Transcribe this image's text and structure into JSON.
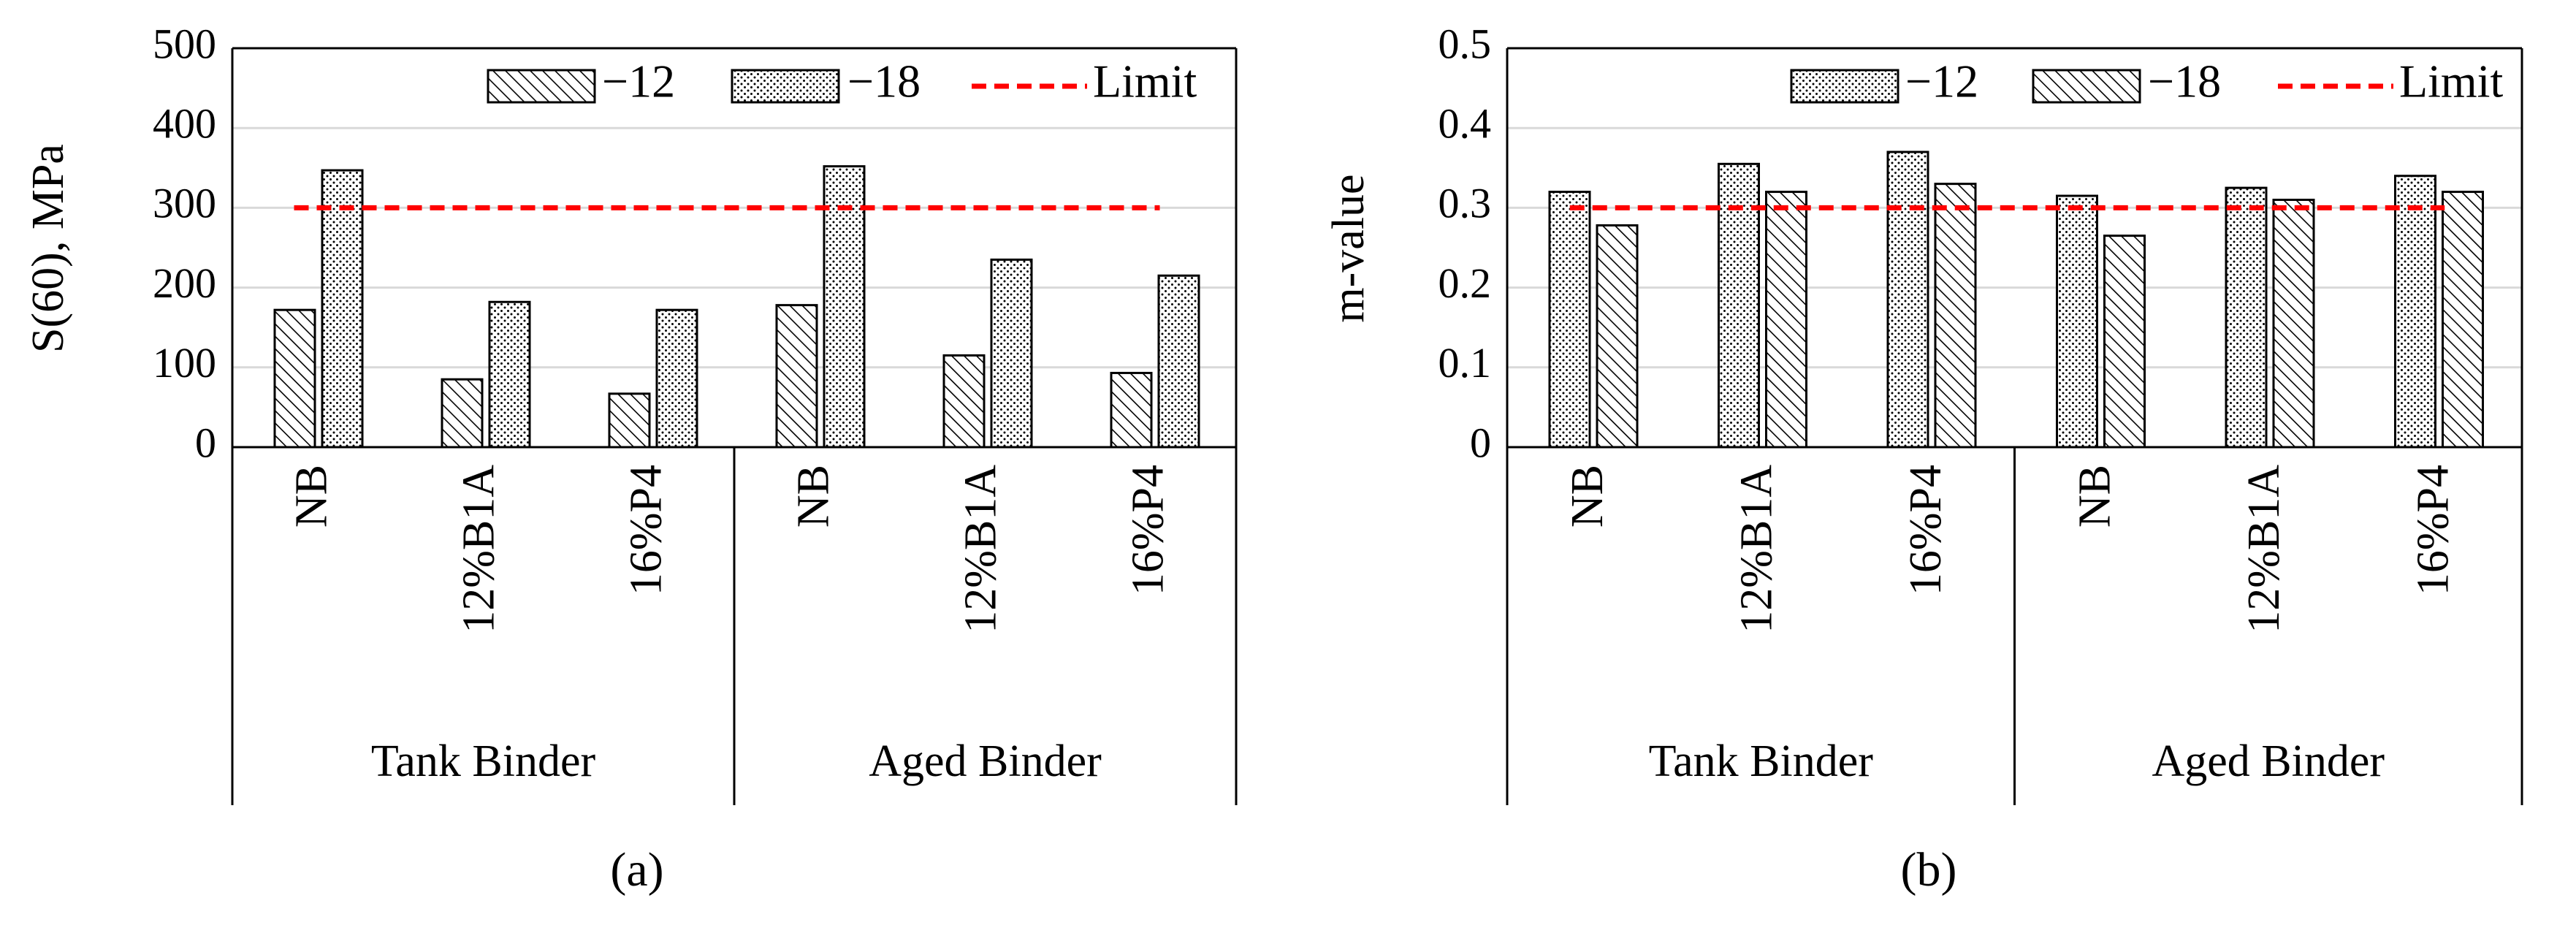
{
  "chart_data": [
    {
      "type": "bar",
      "panel_label": "(a)",
      "ylabel": "S(60), MPa",
      "xlabel": "",
      "ylim": [
        0,
        500
      ],
      "yticks": [
        0,
        100,
        200,
        300,
        400,
        500
      ],
      "ytick_labels": [
        "0",
        "100",
        "200",
        "300",
        "400",
        "500"
      ],
      "grid": true,
      "legend_position": "top-right",
      "groups": [
        {
          "name": "Tank Binder",
          "categories": [
            "NB",
            "12%B1A",
            "16%P4"
          ]
        },
        {
          "name": "Aged Binder",
          "categories": [
            "NB",
            "12%B1A",
            "16%P4"
          ]
        }
      ],
      "categories": [
        "NB",
        "12%B1A",
        "16%P4",
        "NB",
        "12%B1A",
        "16%P4"
      ],
      "series": [
        {
          "name": "−12",
          "pattern": "hatch",
          "values": [
            172,
            85,
            67,
            178,
            115,
            93
          ]
        },
        {
          "name": "−18",
          "pattern": "dots",
          "values": [
            347,
            182,
            172,
            352,
            235,
            215
          ]
        }
      ],
      "limit": {
        "name": "Limit",
        "value": 300,
        "color": "#ff0000",
        "style": "dashed"
      }
    },
    {
      "type": "bar",
      "panel_label": "(b)",
      "ylabel": "m-value",
      "xlabel": "",
      "ylim": [
        0,
        0.5
      ],
      "yticks": [
        0,
        0.1,
        0.2,
        0.3,
        0.4,
        0.5
      ],
      "ytick_labels": [
        "0",
        "0.1",
        "0.2",
        "0.3",
        "0.4",
        "0.5"
      ],
      "grid": true,
      "legend_position": "top-right",
      "groups": [
        {
          "name": "Tank Binder",
          "categories": [
            "NB",
            "12%B1A",
            "16%P4"
          ]
        },
        {
          "name": "Aged Binder",
          "categories": [
            "NB",
            "12%B1A",
            "16%P4"
          ]
        }
      ],
      "categories": [
        "NB",
        "12%B1A",
        "16%P4",
        "NB",
        "12%B1A",
        "16%P4"
      ],
      "series": [
        {
          "name": "−12",
          "pattern": "dots",
          "values": [
            0.32,
            0.355,
            0.37,
            0.315,
            0.325,
            0.34
          ]
        },
        {
          "name": "−18",
          "pattern": "hatch",
          "values": [
            0.278,
            0.32,
            0.33,
            0.265,
            0.31,
            0.32
          ]
        }
      ],
      "limit": {
        "name": "Limit",
        "value": 0.3,
        "color": "#ff0000",
        "style": "dashed"
      }
    }
  ]
}
